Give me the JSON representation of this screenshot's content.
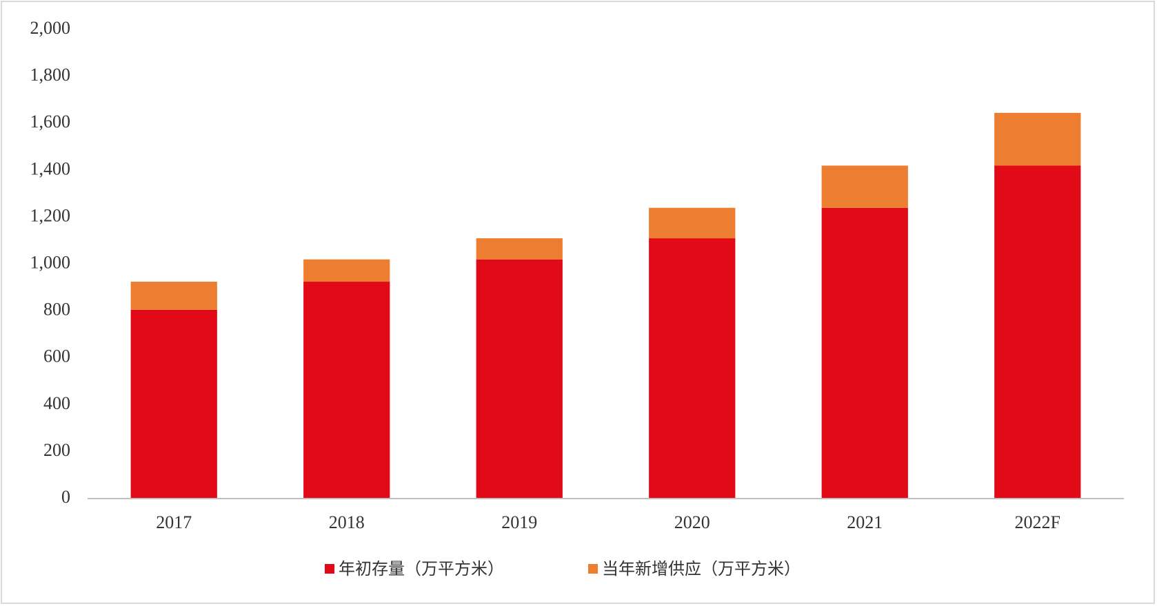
{
  "chart_data": {
    "type": "bar",
    "stacked": true,
    "categories": [
      "2017",
      "2018",
      "2019",
      "2020",
      "2021",
      "2022F"
    ],
    "series": [
      {
        "name": "年初存量（万平方米）",
        "color": "#e30a17",
        "values": [
          805,
          925,
          1020,
          1110,
          1240,
          1420
        ]
      },
      {
        "name": "当年新增供应（万平方米）",
        "color": "#ed7d31",
        "values": [
          120,
          95,
          90,
          130,
          180,
          225
        ]
      }
    ],
    "ylim": [
      0,
      2000
    ],
    "yticks": [
      0,
      200,
      400,
      600,
      800,
      {
        "value": 1000,
        "label": "1,000"
      },
      {
        "value": 1200,
        "label": "1,200"
      },
      {
        "value": 1400,
        "label": "1,400"
      },
      {
        "value": 1600,
        "label": "1,600"
      },
      {
        "value": 1800,
        "label": "1,800"
      },
      {
        "value": 2000,
        "label": "2,000"
      }
    ],
    "grid": false,
    "legend": "bottom"
  }
}
